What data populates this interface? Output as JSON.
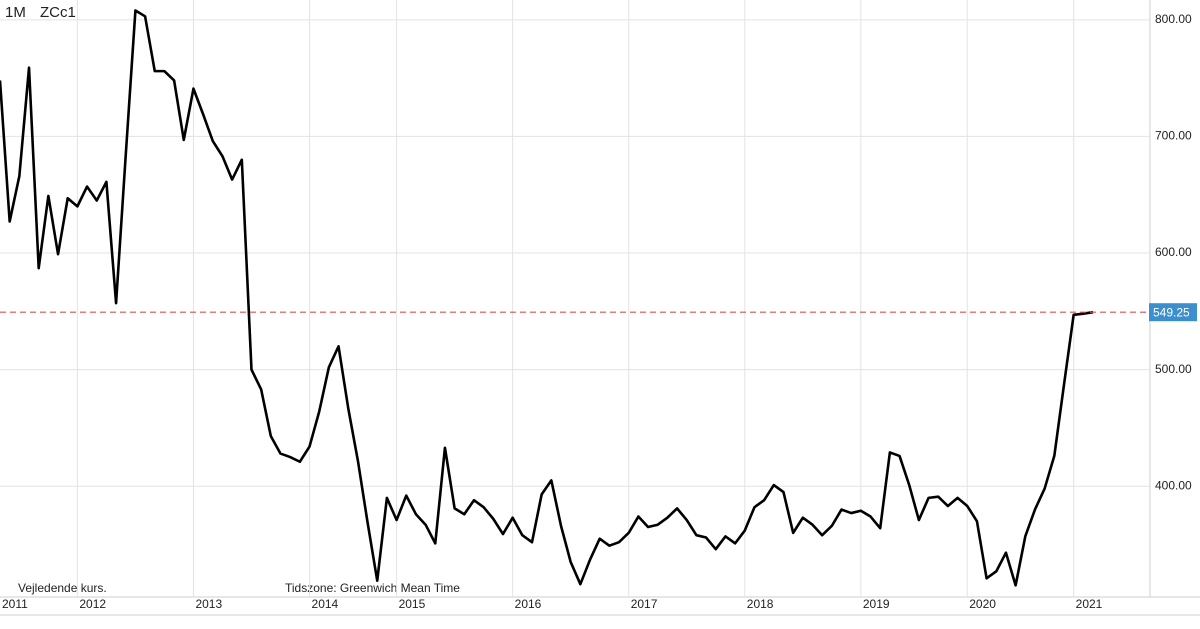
{
  "chart_data": {
    "type": "line",
    "interval": "1M",
    "symbol": "ZCc1",
    "annotations": [
      "Vejledende kurs.",
      "Tidszone: Greenwich Mean Time"
    ],
    "categories": [
      "2011",
      null,
      null,
      null,
      null,
      null,
      null,
      null,
      "2012",
      null,
      null,
      null,
      null,
      null,
      null,
      null,
      null,
      null,
      null,
      null,
      "2013",
      null,
      null,
      null,
      null,
      null,
      null,
      null,
      null,
      null,
      null,
      null,
      "2014",
      null,
      null,
      null,
      null,
      null,
      null,
      null,
      null,
      "2015",
      null,
      null,
      null,
      null,
      null,
      null,
      null,
      null,
      null,
      null,
      null,
      "2016",
      null,
      null,
      null,
      null,
      null,
      null,
      null,
      null,
      null,
      null,
      null,
      "2017",
      null,
      null,
      null,
      null,
      null,
      null,
      null,
      null,
      null,
      null,
      null,
      "2018",
      null,
      null,
      null,
      null,
      null,
      null,
      null,
      null,
      null,
      null,
      null,
      "2019",
      null,
      null,
      null,
      null,
      null,
      null,
      null,
      null,
      null,
      null,
      "2020",
      null,
      null,
      null,
      null,
      null,
      null,
      null,
      null,
      null,
      null,
      "2021",
      null,
      null
    ],
    "series": [
      {
        "name": "ZCc1",
        "color": "#000000",
        "values": [
          748,
          627,
          666,
          759,
          587,
          649,
          599,
          647,
          640,
          657,
          645,
          661,
          557,
          684,
          808,
          803,
          756,
          756,
          748,
          697,
          741,
          719,
          696,
          683,
          663,
          680,
          500,
          483,
          443,
          428,
          425,
          421,
          434,
          464,
          502,
          520,
          467,
          422,
          369,
          319,
          390,
          371,
          392,
          376,
          367,
          351,
          433,
          381,
          376,
          388,
          382,
          372,
          359,
          373,
          358,
          352,
          393,
          405,
          366,
          335,
          316,
          337,
          355,
          349,
          352,
          360,
          374,
          365,
          367,
          373,
          381,
          371,
          358,
          356,
          346,
          357,
          351,
          362,
          382,
          388,
          401,
          395,
          360,
          373,
          367,
          358,
          366,
          380,
          377,
          379,
          374,
          364,
          429,
          426,
          401,
          371,
          390,
          391,
          383,
          390,
          383,
          370,
          321,
          327,
          343,
          315,
          357,
          380,
          398,
          426,
          487,
          547,
          548,
          549.25
        ]
      }
    ],
    "last_label": "549.25",
    "last_line_color": "#d9534f",
    "last_label_color": "#3b8fce",
    "ylim": [
      305,
      817
    ],
    "yticks": [
      {
        "value": 400,
        "label": "400.00"
      },
      {
        "value": 500,
        "label": "500.00"
      },
      {
        "value": 600,
        "label": "600.00"
      },
      {
        "value": 700,
        "label": "700.00"
      },
      {
        "value": 800,
        "label": "800.00"
      }
    ],
    "grid": true,
    "y_axis_side": "right"
  }
}
